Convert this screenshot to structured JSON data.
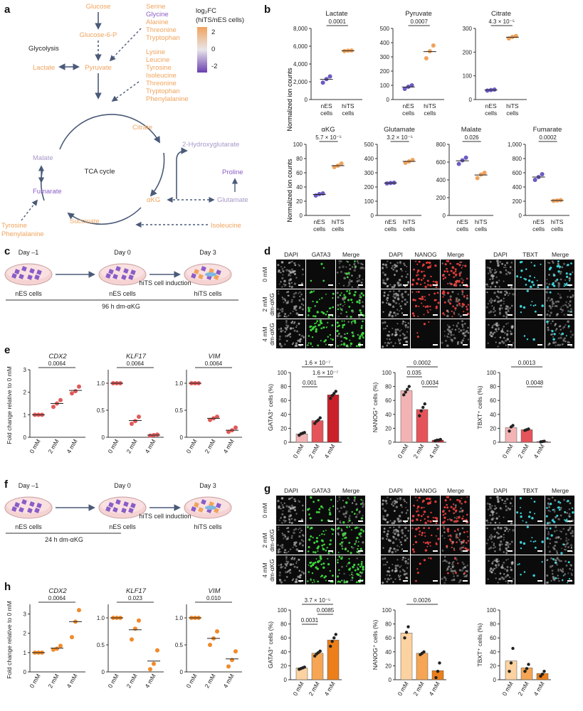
{
  "panel_labels": {
    "a": "a",
    "b": "b",
    "c": "c",
    "d": "d",
    "e": "e",
    "f": "f",
    "g": "g",
    "h": "h"
  },
  "pathway": {
    "glucose": "Glucose",
    "g6p": "Glucose-6-P",
    "glycolysis": "Glycolysis",
    "pyruvate": "Pyruvate",
    "lactate": "Lactate",
    "aa_group1": [
      "Serine",
      "Glycine",
      "Alanine",
      "Threonine",
      "Tryptophan"
    ],
    "aa_group2": [
      "Lysine",
      "Leucine",
      "Tyrosine",
      "Isoleucine",
      "Threonine",
      "Tryptophan",
      "Phenylalanine"
    ],
    "citrate": "Citrate",
    "tca": "TCA cycle",
    "malate": "Malate",
    "fumarate": "Fumarate",
    "succinate": "Succinate",
    "akg": "αKG",
    "hg2": "2-Hydroxyglutarate",
    "proline": "Proline",
    "glutamate": "Glutamate",
    "isoleucine": "Isoleucine",
    "tyr": "Tyrosine",
    "phe": "Phenylalanine",
    "legend_title1": "log₂FC",
    "legend_title2": "(hiTS/nES cells)",
    "legend_ticks": [
      "2",
      "0",
      "-2"
    ],
    "color_up": "#f0a35c",
    "color_down": "#8a5cc7"
  },
  "panel_b": {
    "ylabel": "Normalized ion counts",
    "xcats": [
      "nES cells",
      "hiTS cells"
    ],
    "plots": [
      {
        "title": "Lactate",
        "p": "0.0001",
        "ticks": [
          "0",
          "2,000",
          "4,000",
          "6,000",
          "8,000"
        ],
        "ymax": 8000,
        "nes": [
          1900,
          2300,
          2600
        ],
        "hits": [
          5450,
          5500,
          5520
        ],
        "nes_mean": 2270,
        "hits_mean": 5490
      },
      {
        "title": "Pyruvate",
        "p": "0.0007",
        "ticks": [
          "0",
          "100",
          "200",
          "300",
          "400",
          "500"
        ],
        "ymax": 500,
        "nes": [
          75,
          90,
          100
        ],
        "hits": [
          290,
          340,
          380
        ],
        "nes_mean": 88,
        "hits_mean": 337
      },
      {
        "title": "Citrate",
        "p": "4.3 × 10⁻⁵",
        "ticks": [
          "0",
          "100",
          "200",
          "300"
        ],
        "ymax": 300,
        "nes": [
          38,
          40,
          42
        ],
        "hits": [
          258,
          264,
          268
        ],
        "nes_mean": 40,
        "hits_mean": 263
      },
      {
        "title": "αKG",
        "p": "5.7 × 10⁻⁵",
        "ticks": [
          "0",
          "20",
          "40",
          "60",
          "80",
          "100"
        ],
        "ymax": 100,
        "nes": [
          28,
          30,
          31
        ],
        "hits": [
          68,
          70,
          73
        ],
        "nes_mean": 29.5,
        "hits_mean": 70
      },
      {
        "title": "Glutamate",
        "p": "3.2 × 10⁻⁵",
        "ticks": [
          "0",
          "100",
          "200",
          "300",
          "400",
          "500"
        ],
        "ymax": 500,
        "nes": [
          225,
          228,
          230
        ],
        "hits": [
          370,
          380,
          390
        ],
        "nes_mean": 228,
        "hits_mean": 380
      },
      {
        "title": "Malate",
        "p": "0.026",
        "ticks": [
          "0",
          "200",
          "400",
          "600",
          "800"
        ],
        "ymax": 800,
        "nes": [
          580,
          620,
          650
        ],
        "hits": [
          420,
          460,
          480
        ],
        "nes_mean": 615,
        "hits_mean": 455
      },
      {
        "title": "Fumarate",
        "p": "0.0002",
        "ticks": [
          "0",
          "200",
          "400",
          "600",
          "800",
          "1,000"
        ],
        "ymax": 1000,
        "nes": [
          500,
          540,
          580
        ],
        "hits": [
          205,
          210,
          215
        ],
        "nes_mean": 540,
        "hits_mean": 210
      }
    ]
  },
  "panel_c": {
    "steps": [
      "Day –1",
      "Day 0",
      "Day 3"
    ],
    "cells": [
      "nES cells",
      "nES cells",
      "hiTS cells"
    ],
    "induction": "hiTS cell induction",
    "treatment": "96 h dm-αKG"
  },
  "panel_f": {
    "steps": [
      "Day –1",
      "Day 0",
      "Day 3"
    ],
    "cells": [
      "nES cells",
      "nES cells",
      "hiTS cells"
    ],
    "induction": "hiTS cell induction",
    "treatment": "24 h dm-αKG"
  },
  "micro": {
    "groups": [
      {
        "cols": [
          "DAPI",
          "GATA3",
          "Merge"
        ],
        "stain": "#3bd13b"
      },
      {
        "cols": [
          "DAPI",
          "NANOG",
          "Merge"
        ],
        "stain": "#e03b3b"
      },
      {
        "cols": [
          "DAPI",
          "TBXT",
          "Merge"
        ],
        "stain": "#3ad0d8"
      }
    ],
    "rows_d": [
      "0 mM",
      "2 mM dm-αKG",
      "4 mM dm-αKG"
    ],
    "rows_g": [
      "0 mM",
      "2 mM dm-αKG",
      "4 mM dm-αKG"
    ]
  },
  "panel_e": {
    "ylabel": "Fold change relative to 0 mM",
    "xcats": [
      "0 mM",
      "2 mM",
      "4 mM"
    ],
    "plots": [
      {
        "title": "CDX2",
        "p": "0.0064",
        "ticks": [
          "0",
          "1",
          "2",
          "3"
        ],
        "ymax": 3,
        "pts": [
          [
            1,
            1,
            1
          ],
          [
            1.35,
            1.5,
            1.65
          ],
          [
            1.95,
            2.05,
            2.25
          ]
        ],
        "means": [
          1,
          1.5,
          2.08
        ]
      },
      {
        "title": "KLF17",
        "p": "0.0064",
        "ticks": [
          "0",
          "0.5",
          "1.0"
        ],
        "ymax": 1.25,
        "pts": [
          [
            1,
            1,
            1
          ],
          [
            0.25,
            0.3,
            0.38
          ],
          [
            0.03,
            0.04,
            0.05
          ]
        ],
        "means": [
          1,
          0.31,
          0.04
        ]
      },
      {
        "title": "VIM",
        "p": "0.0064",
        "ticks": [
          "0",
          "0.5",
          "1.0"
        ],
        "ymax": 1.25,
        "pts": [
          [
            1,
            1,
            1
          ],
          [
            0.32,
            0.35,
            0.38
          ],
          [
            0.1,
            0.13,
            0.18
          ]
        ],
        "means": [
          1,
          0.35,
          0.13
        ]
      }
    ]
  },
  "panel_h": {
    "ylabel": "Fold change relative to 0 mM",
    "xcats": [
      "0 mM",
      "2 mM",
      "4 mM"
    ],
    "plots": [
      {
        "title": "CDX2",
        "p": "0.0064",
        "ticks": [
          "0",
          "1",
          "2",
          "3"
        ],
        "ymax": 3.5,
        "pts": [
          [
            1,
            1,
            1
          ],
          [
            1.15,
            1.2,
            1.35
          ],
          [
            1.8,
            2.6,
            3.2
          ]
        ],
        "means": [
          1,
          1.23,
          2.6
        ]
      },
      {
        "title": "KLF17",
        "p": "0.023",
        "ticks": [
          "0",
          "0.5",
          "1.0"
        ],
        "ymax": 1.25,
        "pts": [
          [
            1,
            1,
            1
          ],
          [
            0.6,
            0.8,
            0.95
          ],
          [
            0.05,
            0.15,
            0.4
          ]
        ],
        "means": [
          1,
          0.78,
          0.2
        ]
      },
      {
        "title": "VIM",
        "p": "0.010",
        "ticks": [
          "0",
          "0.5",
          "1.0"
        ],
        "ymax": 1.25,
        "pts": [
          [
            1,
            1,
            1
          ],
          [
            0.5,
            0.62,
            0.75
          ],
          [
            0.1,
            0.22,
            0.38
          ]
        ],
        "means": [
          1,
          0.62,
          0.24
        ]
      }
    ]
  },
  "bars_d": {
    "xcats": [
      "0 mM",
      "2 mM",
      "4 mM"
    ],
    "plots": [
      {
        "ylabel": "GATA3⁺ cells (%)",
        "ticks": [
          "0",
          "20",
          "40",
          "60",
          "80",
          "100"
        ],
        "ymax": 100,
        "values": [
          12,
          31,
          68
        ],
        "pts": [
          [
            10,
            12,
            13,
            14
          ],
          [
            27,
            30,
            32,
            35
          ],
          [
            63,
            67,
            70,
            73
          ]
        ],
        "colors": [
          "#f3b3b5",
          "#e5545a",
          "#c9202a"
        ],
        "pvals": [
          {
            "text": "0.001",
            "a": 0,
            "b": 1,
            "lvl": 1
          },
          {
            "text": "1.6 × 10⁻⁷",
            "a": 1,
            "b": 2,
            "lvl": 2
          },
          {
            "text": "1.6 × 10⁻⁷",
            "a": 0,
            "b": 2,
            "lvl": 3
          }
        ]
      },
      {
        "ylabel": "NANOG⁺ cells (%)",
        "ticks": [
          "0",
          "20",
          "40",
          "60",
          "80",
          "100"
        ],
        "ymax": 100,
        "values": [
          74,
          47,
          3
        ],
        "pts": [
          [
            68,
            72,
            76,
            80
          ],
          [
            38,
            45,
            50,
            55
          ],
          [
            2,
            3,
            3,
            4
          ]
        ],
        "colors": [
          "#f3b3b5",
          "#e5545a",
          "#c9202a"
        ],
        "pvals": [
          {
            "text": "0.0034",
            "a": 1,
            "b": 2,
            "lvl": 1
          },
          {
            "text": "0.035",
            "a": 0,
            "b": 1,
            "lvl": 2
          },
          {
            "text": "0.0002",
            "a": 0,
            "b": 2,
            "lvl": 3
          }
        ]
      },
      {
        "ylabel": "TBXT⁺ cells (%)",
        "ticks": [
          "0",
          "20",
          "40",
          "60",
          "80",
          "100"
        ],
        "ymax": 100,
        "values": [
          21,
          18,
          1
        ],
        "pts": [
          [
            16,
            22,
            24
          ],
          [
            17,
            18,
            19
          ],
          [
            0.5,
            1,
            1.5
          ]
        ],
        "colors": [
          "#f3b3b5",
          "#e5545a",
          "#c9202a"
        ],
        "pvals": [
          {
            "text": "0.0048",
            "a": 1,
            "b": 2,
            "lvl": 1
          },
          {
            "text": "0.0013",
            "a": 0,
            "b": 2,
            "lvl": 3
          }
        ]
      }
    ]
  },
  "bars_g": {
    "xcats": [
      "0 mM",
      "2 mM",
      "4 mM"
    ],
    "plots": [
      {
        "ylabel": "GATA3⁺ cells (%)",
        "ticks": [
          "0",
          "20",
          "40",
          "60",
          "80",
          "100"
        ],
        "ymax": 100,
        "values": [
          17,
          38,
          57
        ],
        "pts": [
          [
            15,
            16,
            17,
            18
          ],
          [
            34,
            37,
            39,
            41
          ],
          [
            48,
            55,
            60,
            65
          ]
        ],
        "colors": [
          "#fbd2a0",
          "#f5a553",
          "#ec7f1a"
        ],
        "pvals": [
          {
            "text": "0.0031",
            "a": 0,
            "b": 1,
            "lvl": 1
          },
          {
            "text": "0.0085",
            "a": 1,
            "b": 2,
            "lvl": 2
          },
          {
            "text": "3.7 × 10⁻⁵",
            "a": 0,
            "b": 2,
            "lvl": 3
          }
        ]
      },
      {
        "ylabel": "NANOG⁺ cells (%)",
        "ticks": [
          "0",
          "20",
          "40",
          "60",
          "80",
          "100"
        ],
        "ymax": 100,
        "values": [
          67,
          38,
          13
        ],
        "pts": [
          [
            60,
            68,
            76
          ],
          [
            36,
            38,
            40
          ],
          [
            3,
            12,
            24
          ]
        ],
        "colors": [
          "#fbd2a0",
          "#f5a553",
          "#ec7f1a"
        ],
        "pvals": [
          {
            "text": "0.0026",
            "a": 0,
            "b": 2,
            "lvl": 3
          }
        ]
      },
      {
        "ylabel": "TBXT⁺ cells (%)",
        "ticks": [
          "0",
          "20",
          "40",
          "60",
          "80",
          "100"
        ],
        "ymax": 100,
        "values": [
          27,
          17,
          9
        ],
        "pts": [
          [
            12,
            24,
            45
          ],
          [
            12,
            16,
            22
          ],
          [
            5,
            8,
            12
          ]
        ],
        "colors": [
          "#fbd2a0",
          "#f5a553",
          "#ec7f1a"
        ],
        "pvals": []
      }
    ]
  }
}
